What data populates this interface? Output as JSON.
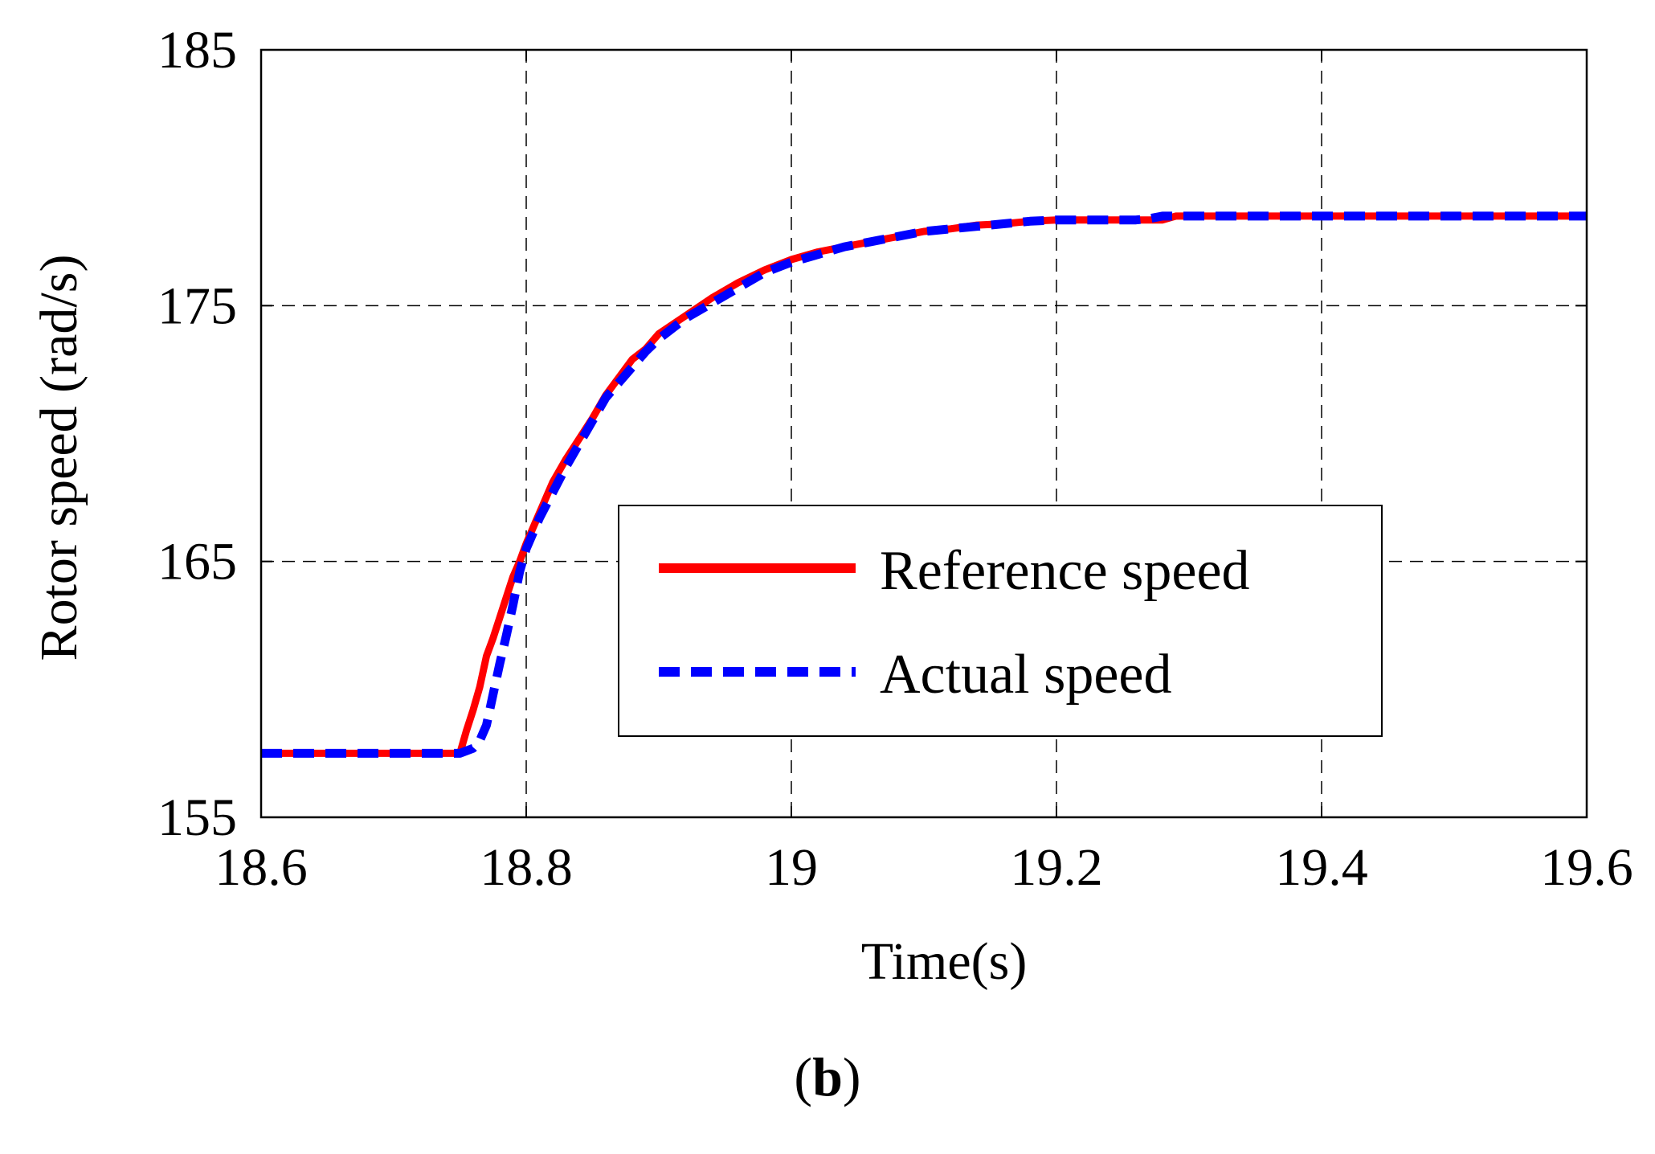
{
  "chart_data": {
    "type": "line",
    "title": "",
    "xlabel": "Time(s)",
    "ylabel": "Rotor speed (rad/s)",
    "xlim": [
      18.6,
      19.6
    ],
    "ylim": [
      155,
      185
    ],
    "xticks": [
      18.6,
      18.8,
      19.0,
      19.2,
      19.4,
      19.6
    ],
    "xtick_labels": [
      "18.6",
      "18.8",
      "19",
      "19.2",
      "19.4",
      "19.6"
    ],
    "yticks": [
      155,
      165,
      175,
      185
    ],
    "ytick_labels": [
      "155",
      "165",
      "175",
      "185"
    ],
    "grid": true,
    "legend_position": "lower-right",
    "series": [
      {
        "name": "Reference speed",
        "color": "#ff0000",
        "style": "solid",
        "x": [
          18.6,
          18.75,
          18.755,
          18.76,
          18.765,
          18.77,
          18.775,
          18.78,
          18.785,
          18.79,
          18.795,
          18.8,
          18.81,
          18.82,
          18.83,
          18.84,
          18.85,
          18.86,
          18.87,
          18.88,
          18.89,
          18.9,
          18.92,
          18.94,
          18.96,
          18.98,
          19.0,
          19.02,
          19.04,
          19.06,
          19.08,
          19.1,
          19.12,
          19.14,
          19.16,
          19.18,
          19.2,
          19.22,
          19.24,
          19.26,
          19.28,
          19.29,
          19.3,
          19.4,
          19.5,
          19.6
        ],
        "y": [
          157.5,
          157.5,
          158.4,
          159.2,
          160.1,
          161.3,
          162.0,
          162.8,
          163.6,
          164.4,
          165.0,
          165.7,
          166.9,
          168.1,
          169.0,
          169.8,
          170.6,
          171.5,
          172.2,
          172.9,
          173.3,
          173.9,
          174.6,
          175.3,
          175.9,
          176.4,
          176.8,
          177.1,
          177.3,
          177.5,
          177.7,
          177.9,
          178.0,
          178.15,
          178.2,
          178.3,
          178.35,
          178.35,
          178.35,
          178.35,
          178.35,
          178.5,
          178.5,
          178.5,
          178.5,
          178.5
        ]
      },
      {
        "name": "Actual speed",
        "color": "#0000ff",
        "style": "dashed",
        "x": [
          18.6,
          18.75,
          18.76,
          18.765,
          18.77,
          18.775,
          18.78,
          18.785,
          18.79,
          18.795,
          18.8,
          18.81,
          18.82,
          18.83,
          18.84,
          18.85,
          18.86,
          18.87,
          18.88,
          18.89,
          18.9,
          18.92,
          18.94,
          18.96,
          18.98,
          19.0,
          19.02,
          19.04,
          19.06,
          19.08,
          19.1,
          19.12,
          19.14,
          19.16,
          19.18,
          19.2,
          19.22,
          19.24,
          19.26,
          19.27,
          19.28,
          19.3,
          19.4,
          19.5,
          19.6
        ],
        "y": [
          157.5,
          157.5,
          157.7,
          158.0,
          158.6,
          159.8,
          161.0,
          162.1,
          163.3,
          164.6,
          165.5,
          166.7,
          167.7,
          168.7,
          169.6,
          170.5,
          171.4,
          172.0,
          172.6,
          173.2,
          173.7,
          174.5,
          175.1,
          175.7,
          176.3,
          176.7,
          177.0,
          177.3,
          177.5,
          177.7,
          177.9,
          178.0,
          178.1,
          178.2,
          178.3,
          178.35,
          178.35,
          178.35,
          178.35,
          178.4,
          178.5,
          178.5,
          178.5,
          178.5,
          178.5
        ]
      }
    ]
  },
  "caption": {
    "open": "(",
    "letter": "b",
    "close": ")"
  }
}
